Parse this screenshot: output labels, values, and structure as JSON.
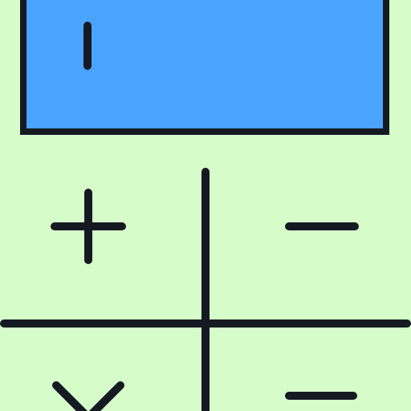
{
  "icon": {
    "name": "calculator-icon",
    "colors": {
      "background": "#d6fcca",
      "display_fill": "#4aa3ff",
      "stroke": "#151a22"
    },
    "display": {
      "cursor_icon": "text-cursor-icon"
    },
    "keys": [
      {
        "name": "plus-key",
        "symbol": "plus-icon"
      },
      {
        "name": "minus-key",
        "symbol": "minus-icon"
      },
      {
        "name": "multiply-key",
        "symbol": "multiply-icon"
      },
      {
        "name": "equals-key",
        "symbol": "equals-icon"
      }
    ]
  }
}
